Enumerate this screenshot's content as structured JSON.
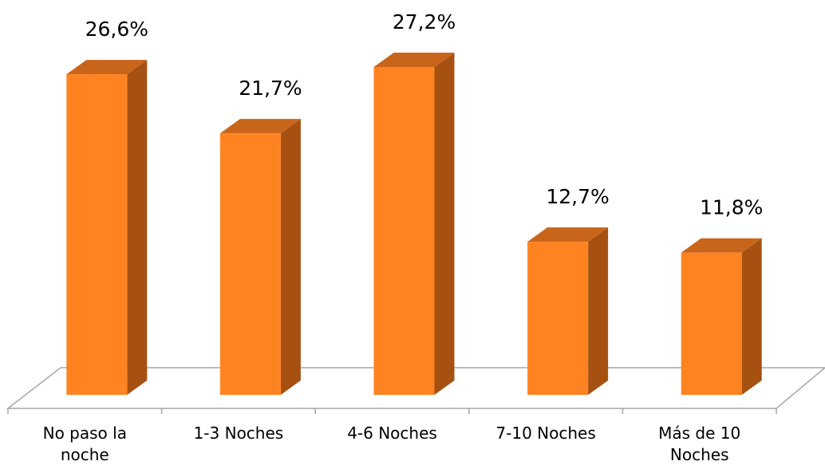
{
  "chart_data": {
    "type": "bar",
    "style": "3d-column",
    "categories": [
      [
        "No paso la",
        "noche"
      ],
      [
        "1-3 Noches"
      ],
      [
        "4-6 Noches"
      ],
      [
        "7-10 Noches"
      ],
      [
        "Más de 10",
        "Noches"
      ]
    ],
    "values": [
      26.6,
      21.7,
      27.2,
      12.7,
      11.8
    ],
    "data_labels": [
      "26,6%",
      "21,7%",
      "27,2%",
      "12,7%",
      "11,8%"
    ],
    "unit": "%",
    "title": "",
    "xlabel": "",
    "ylabel": "",
    "ylim": [
      0,
      30
    ],
    "grid": false,
    "legend": "none",
    "colors": {
      "bar_front": "#FF8321",
      "bar_side": "#A65111",
      "bar_top": "#C9651B",
      "floor_line": "#A6A6A6"
    }
  }
}
